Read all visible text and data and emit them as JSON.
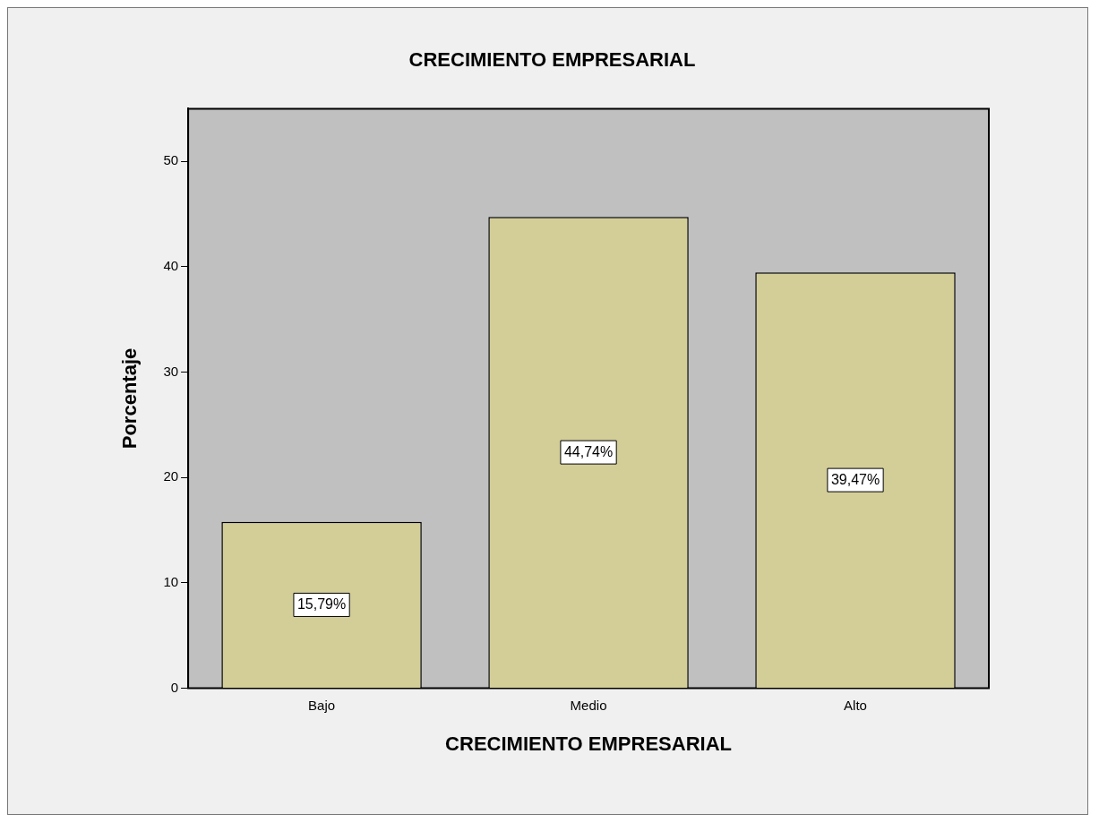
{
  "chart_data": {
    "type": "bar",
    "title": "CRECIMIENTO EMPRESARIAL",
    "xlabel": "CRECIMIENTO EMPRESARIAL",
    "ylabel": "Porcentaje",
    "categories": [
      "Bajo",
      "Medio",
      "Alto"
    ],
    "values": [
      15.79,
      44.74,
      39.47
    ],
    "color": "#d3cd98",
    "value_labels": [
      "15,79%",
      "44,74%",
      "39,47%"
    ],
    "ylim": [
      0,
      55
    ],
    "yticks": [
      0,
      10,
      20,
      30,
      40,
      50
    ],
    "grid": false,
    "legend": false
  }
}
